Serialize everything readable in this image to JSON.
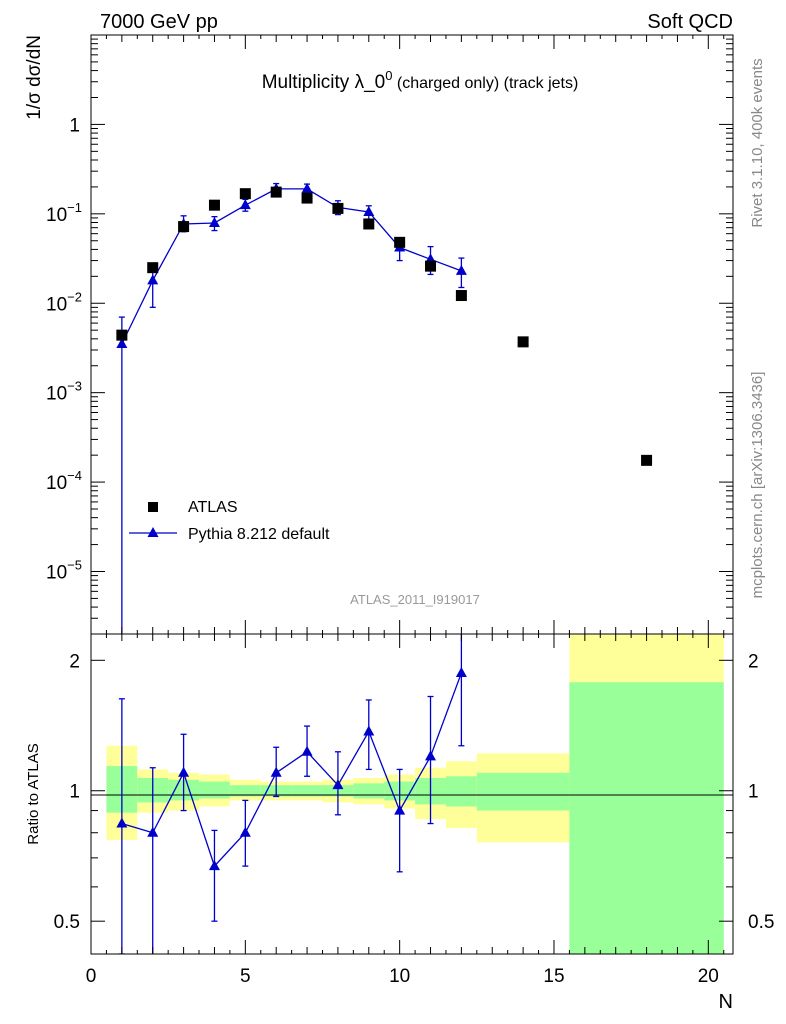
{
  "header": {
    "energy_label": "7000 GeV pp",
    "process_label": "Soft QCD"
  },
  "side_labels": {
    "rivet": "Rivet 3.1.10,  400k events",
    "site": "mcplots.cern.ch [arXiv:1306.3436]"
  },
  "chart_data": [
    {
      "type": "scatter",
      "panel": "main",
      "title_main": "Multiplicity λ_0",
      "title_sup": "0",
      "title_rest": " (charged only) (track jets)",
      "ylabel": "1/σ dσ/dN",
      "yscale": "log",
      "ylim": [
        2e-06,
        10
      ],
      "xlim": [
        0,
        20.8
      ],
      "y_tick_labels": [
        {
          "value": 1,
          "base": "1",
          "exp": ""
        },
        {
          "value": 0.1,
          "base": "10",
          "exp": "−1"
        },
        {
          "value": 0.01,
          "base": "10",
          "exp": "−2"
        },
        {
          "value": 0.001,
          "base": "10",
          "exp": "−3"
        },
        {
          "value": 0.0001,
          "base": "10",
          "exp": "−4"
        },
        {
          "value": 1e-05,
          "base": "10",
          "exp": "−5"
        }
      ],
      "watermark": "ATLAS_2011_I919017",
      "legend": [
        {
          "label": "ATLAS",
          "marker": "square",
          "color": "#000000"
        },
        {
          "label": "Pythia 8.212 default",
          "marker": "triangle",
          "color": "#0000cc"
        }
      ],
      "series": [
        {
          "name": "ATLAS",
          "x": [
            1,
            2,
            3,
            4,
            5,
            6,
            7,
            8,
            9,
            10,
            11,
            12,
            14,
            18
          ],
          "y": [
            0.0044,
            0.025,
            0.072,
            0.125,
            0.168,
            0.175,
            0.15,
            0.115,
            0.077,
            0.048,
            0.026,
            0.0122,
            0.0037,
            0.000175
          ]
        },
        {
          "name": "Pythia 8.212 default",
          "x": [
            1,
            2,
            3,
            4,
            5,
            6,
            7,
            8,
            9,
            10,
            11,
            12
          ],
          "y": [
            0.0035,
            0.018,
            0.077,
            0.079,
            0.125,
            0.19,
            0.19,
            0.118,
            0.105,
            0.042,
            0.031,
            0.023
          ],
          "err_lo": [
            0.0035,
            0.009,
            0.014,
            0.014,
            0.018,
            0.025,
            0.025,
            0.02,
            0.018,
            0.012,
            0.01,
            0.008
          ],
          "err_hi": [
            0.0035,
            0.009,
            0.018,
            0.014,
            0.02,
            0.028,
            0.025,
            0.022,
            0.018,
            0.01,
            0.012,
            0.009
          ]
        }
      ]
    },
    {
      "type": "scatter",
      "panel": "ratio",
      "ylabel": "Ratio to ATLAS",
      "xlabel": "N",
      "yscale": "log",
      "ylim": [
        0.42,
        2.3
      ],
      "xlim": [
        0,
        20.8
      ],
      "x_ticks": [
        0,
        5,
        10,
        15,
        20
      ],
      "y_ticks": [
        0.5,
        1,
        2
      ],
      "y_tick_labels": [
        "0.5",
        "1",
        "2"
      ],
      "bands": [
        {
          "x0": 0.5,
          "x1": 1.5,
          "g_lo": 0.89,
          "g_hi": 1.14,
          "y_lo": 0.77,
          "y_hi": 1.27
        },
        {
          "x0": 1.5,
          "x1": 2.5,
          "g_lo": 0.94,
          "g_hi": 1.07,
          "y_lo": 0.89,
          "y_hi": 1.12
        },
        {
          "x0": 2.5,
          "x1": 3.5,
          "g_lo": 0.95,
          "g_hi": 1.06,
          "y_lo": 0.9,
          "y_hi": 1.1
        },
        {
          "x0": 3.5,
          "x1": 4.5,
          "g_lo": 0.96,
          "g_hi": 1.05,
          "y_lo": 0.92,
          "y_hi": 1.09
        },
        {
          "x0": 4.5,
          "x1": 5.5,
          "g_lo": 0.97,
          "g_hi": 1.03,
          "y_lo": 0.95,
          "y_hi": 1.06
        },
        {
          "x0": 5.5,
          "x1": 6.5,
          "g_lo": 0.97,
          "g_hi": 1.03,
          "y_lo": 0.95,
          "y_hi": 1.05
        },
        {
          "x0": 6.5,
          "x1": 7.5,
          "g_lo": 0.97,
          "g_hi": 1.03,
          "y_lo": 0.95,
          "y_hi": 1.05
        },
        {
          "x0": 7.5,
          "x1": 8.5,
          "g_lo": 0.97,
          "g_hi": 1.03,
          "y_lo": 0.94,
          "y_hi": 1.06
        },
        {
          "x0": 8.5,
          "x1": 9.5,
          "g_lo": 0.96,
          "g_hi": 1.04,
          "y_lo": 0.93,
          "y_hi": 1.07
        },
        {
          "x0": 9.5,
          "x1": 10.5,
          "g_lo": 0.95,
          "g_hi": 1.05,
          "y_lo": 0.91,
          "y_hi": 1.09
        },
        {
          "x0": 10.5,
          "x1": 11.5,
          "g_lo": 0.93,
          "g_hi": 1.07,
          "y_lo": 0.86,
          "y_hi": 1.13
        },
        {
          "x0": 11.5,
          "x1": 12.5,
          "g_lo": 0.92,
          "g_hi": 1.08,
          "y_lo": 0.82,
          "y_hi": 1.17
        },
        {
          "x0": 12.5,
          "x1": 15.5,
          "g_lo": 0.9,
          "g_hi": 1.1,
          "y_lo": 0.76,
          "y_hi": 1.22
        },
        {
          "x0": 15.5,
          "x1": 20.5,
          "g_lo": 0.42,
          "g_hi": 1.78,
          "y_lo": 0.42,
          "y_hi": 2.3
        }
      ],
      "series": [
        {
          "name": "Pythia 8.212 default",
          "x": [
            1,
            2,
            3,
            4,
            5,
            6,
            7,
            8,
            9,
            10,
            11,
            12
          ],
          "y": [
            0.84,
            0.8,
            1.1,
            0.67,
            0.8,
            1.1,
            1.23,
            1.03,
            1.37,
            0.9,
            1.2,
            1.87
          ],
          "err_lo": [
            0.42,
            0.43,
            0.2,
            0.17,
            0.13,
            0.13,
            0.15,
            0.15,
            0.25,
            0.25,
            0.36,
            0.6
          ],
          "err_hi": [
            0.79,
            0.33,
            0.25,
            0.14,
            0.15,
            0.16,
            0.18,
            0.2,
            0.25,
            0.22,
            0.45,
            0.6
          ]
        }
      ]
    }
  ]
}
